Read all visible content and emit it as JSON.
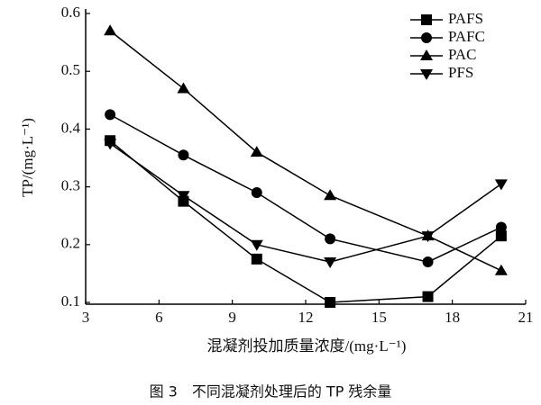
{
  "chart_data": {
    "type": "line",
    "caption": "图 3　不同混凝剂处理后的 TP 残余量",
    "x_label": "混凝剂投加质量浓度/(mg·L⁻¹)",
    "y_label": "TP/(mg·L⁻¹)",
    "x": [
      4,
      7,
      10,
      13,
      17,
      20
    ],
    "xlim": [
      3,
      21
    ],
    "xticks": [
      3,
      6,
      9,
      12,
      15,
      18,
      21
    ],
    "ylim": [
      0.1,
      0.6
    ],
    "yticks": [
      0.1,
      0.2,
      0.3,
      0.4,
      0.5,
      0.6
    ],
    "legend": "upper right",
    "series": [
      {
        "name": "PAFS",
        "color": "#000000",
        "marker": "square",
        "values": [
          0.38,
          0.275,
          0.175,
          0.1,
          0.11,
          0.215
        ]
      },
      {
        "name": "PAFC",
        "color": "#000000",
        "marker": "circle",
        "values": [
          0.425,
          0.355,
          0.29,
          0.21,
          0.17,
          0.23
        ]
      },
      {
        "name": "PAC",
        "color": "#000000",
        "marker": "triangle-up",
        "values": [
          0.57,
          0.47,
          0.36,
          0.285,
          0.215,
          0.155
        ]
      },
      {
        "name": "PFS",
        "color": "#000000",
        "marker": "triangle-down",
        "values": [
          0.375,
          0.285,
          0.2,
          0.17,
          0.215,
          0.305
        ]
      }
    ]
  }
}
